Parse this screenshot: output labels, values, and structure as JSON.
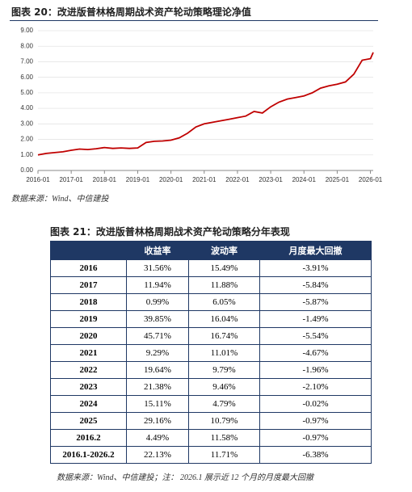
{
  "figure": {
    "caption": "图表 20：改进版普林格周期战术资产轮动策略理论净值",
    "source": "数据来源：Wind、中信建投"
  },
  "chart_data": {
    "type": "line",
    "x": [
      "2016-01",
      "2016-04",
      "2016-07",
      "2016-10",
      "2017-01",
      "2017-04",
      "2017-07",
      "2017-10",
      "2018-01",
      "2018-04",
      "2018-07",
      "2018-10",
      "2019-01",
      "2019-04",
      "2019-07",
      "2019-10",
      "2020-01",
      "2020-04",
      "2020-07",
      "2020-10",
      "2021-01",
      "2021-04",
      "2021-07",
      "2021-10",
      "2022-01",
      "2022-04",
      "2022-07",
      "2022-10",
      "2023-01",
      "2023-04",
      "2023-07",
      "2023-10",
      "2024-01",
      "2024-04",
      "2024-07",
      "2024-10",
      "2025-01",
      "2025-04",
      "2025-07",
      "2025-10",
      "2026-01",
      "2026-02"
    ],
    "series": [
      {
        "color": "#c00000",
        "values": [
          1.0,
          1.1,
          1.15,
          1.2,
          1.3,
          1.38,
          1.35,
          1.4,
          1.48,
          1.42,
          1.45,
          1.42,
          1.45,
          1.8,
          1.88,
          1.9,
          1.95,
          2.1,
          2.4,
          2.8,
          3.0,
          3.1,
          3.2,
          3.3,
          3.4,
          3.5,
          3.8,
          3.7,
          4.1,
          4.4,
          4.6,
          4.7,
          4.8,
          5.0,
          5.3,
          5.45,
          5.55,
          5.7,
          6.2,
          7.1,
          7.2,
          7.6
        ]
      }
    ],
    "xlim": [
      "2016-01",
      "2026-02"
    ],
    "xticks": [
      "2016-01",
      "2017-01",
      "2018-01",
      "2019-01",
      "2020-01",
      "2021-01",
      "2022-01",
      "2023-01",
      "2024-01",
      "2025-01",
      "2026-01"
    ],
    "ylim": [
      0,
      9
    ],
    "yticks": [
      {
        "value": 0,
        "label": "0.00"
      },
      {
        "value": 1,
        "label": "1.00"
      },
      {
        "value": 2,
        "label": "2.00"
      },
      {
        "value": 3,
        "label": "3.00"
      },
      {
        "value": 4,
        "label": "4.00"
      },
      {
        "value": 5,
        "label": "5.00"
      },
      {
        "value": 6,
        "label": "6.00"
      },
      {
        "value": 7,
        "label": "7.00"
      },
      {
        "value": 8,
        "label": "8.00"
      },
      {
        "value": 9,
        "label": "9.00"
      }
    ],
    "grid": true
  },
  "table": {
    "caption": "图表 21：改进版普林格周期战术资产轮动策略分年表现",
    "header": [
      "收益率",
      "波动率",
      "月度最大回撤"
    ],
    "rows": [
      [
        "2016",
        "31.56%",
        "15.49%",
        "-3.91%"
      ],
      [
        "2017",
        "11.94%",
        "11.88%",
        "-5.84%"
      ],
      [
        "2018",
        "0.99%",
        "6.05%",
        "-5.87%"
      ],
      [
        "2019",
        "39.85%",
        "16.04%",
        "-1.49%"
      ],
      [
        "2020",
        "45.71%",
        "16.74%",
        "-5.54%"
      ],
      [
        "2021",
        "9.29%",
        "11.01%",
        "-4.67%"
      ],
      [
        "2022",
        "19.64%",
        "9.79%",
        "-1.96%"
      ],
      [
        "2023",
        "21.38%",
        "9.46%",
        "-2.10%"
      ],
      [
        "2024",
        "15.11%",
        "4.79%",
        "-0.02%"
      ],
      [
        "2025",
        "29.16%",
        "10.79%",
        "-0.97%"
      ],
      [
        "2016.2",
        "4.49%",
        "11.58%",
        "-0.97%"
      ],
      [
        "2016.1-2026.2",
        "22.13%",
        "11.71%",
        "-6.38%"
      ]
    ],
    "source": "数据来源：Wind、中信建投；注： 2026.1 展示近 12 个月的月度最大回撤"
  }
}
